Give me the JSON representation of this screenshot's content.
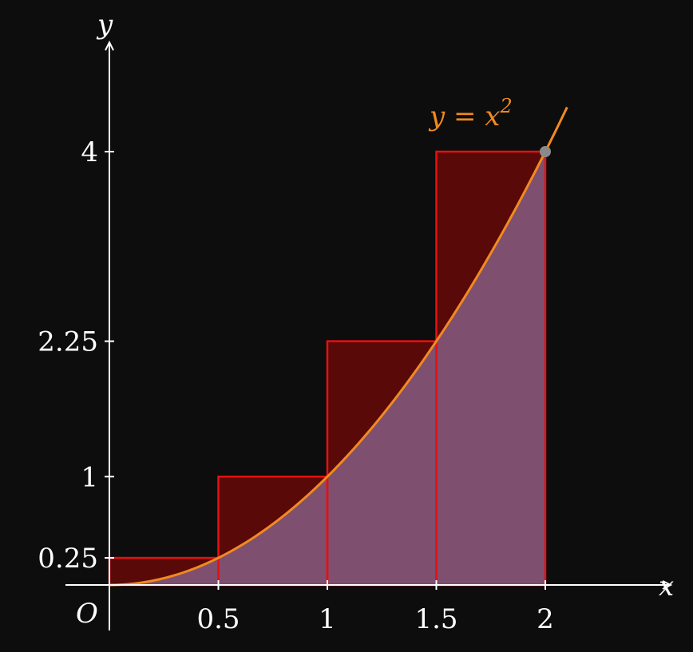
{
  "chart_data": {
    "type": "bar",
    "title": "",
    "xlabel": "x",
    "ylabel": "y",
    "origin_label": "O",
    "curve_label": "y = x",
    "curve_label_exponent": "2",
    "xlim": [
      0,
      2.5
    ],
    "ylim": [
      0,
      5
    ],
    "x_ticks": [
      0.5,
      1,
      1.5,
      2
    ],
    "x_tick_labels": [
      "0.5",
      "1",
      "1.5",
      "2"
    ],
    "y_ticks": [
      0.25,
      1,
      2.25,
      4
    ],
    "y_tick_labels": [
      "0.25",
      "1",
      "2.25",
      "4"
    ],
    "bars": [
      {
        "x0": 0,
        "x1": 0.5,
        "height": 0.25
      },
      {
        "x0": 0.5,
        "x1": 1,
        "height": 1
      },
      {
        "x0": 1,
        "x1": 1.5,
        "height": 2.25
      },
      {
        "x0": 1.5,
        "x1": 2,
        "height": 4
      }
    ],
    "curve": {
      "function": "x^2",
      "domain": [
        0,
        2.1
      ],
      "shaded_domain": [
        0,
        2
      ]
    },
    "marked_point": {
      "x": 2,
      "y": 4
    },
    "grid": false,
    "colors": {
      "background": "#0d0d0d",
      "bar_fill": "#5a0909",
      "bar_stroke": "#e61010",
      "area_fill": "#7f4f6f",
      "curve": "#f28a1e",
      "point": "#8a8a8a",
      "axes": "#ffffff"
    }
  }
}
